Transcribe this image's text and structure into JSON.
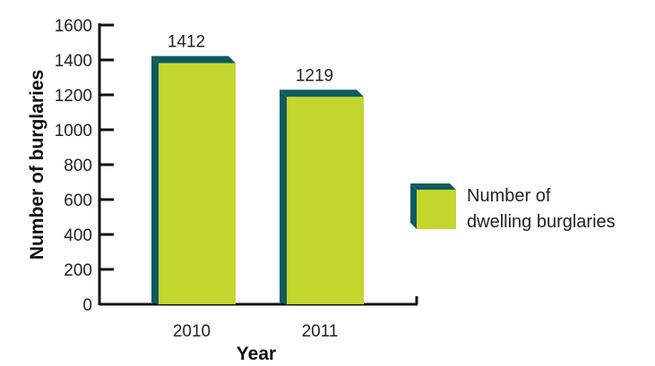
{
  "chart_data": {
    "type": "bar",
    "categories": [
      "2010",
      "2011"
    ],
    "series": [
      {
        "name": "Number of dwelling burglaries",
        "values": [
          1412,
          1219
        ]
      }
    ],
    "data_labels": [
      "1412",
      "1219"
    ],
    "xlabel": "Year",
    "ylabel": "Number of burglaries",
    "ylim": [
      0,
      1600
    ],
    "yticks": [
      0,
      200,
      400,
      600,
      800,
      1000,
      1200,
      1400,
      1600
    ],
    "grid": false,
    "legend_position": "right",
    "legend_lines": [
      "Number of",
      "dwelling burglaries"
    ],
    "colors": {
      "bar_face": "#c2d62e",
      "bar_side": "#0f5b5e",
      "axis": "#111111"
    }
  }
}
